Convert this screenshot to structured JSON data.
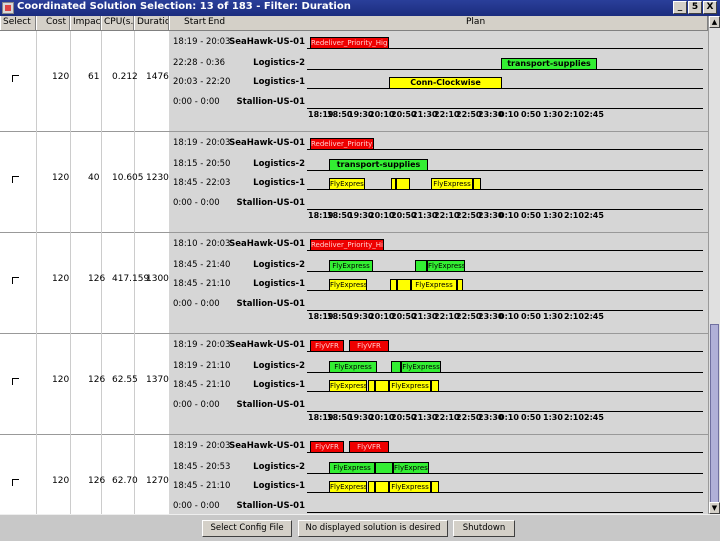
{
  "window": {
    "title": "Coordinated Solution Selection: 13 of 183 - Filter: Duration",
    "min": "_",
    "restore": "5",
    "close": "X"
  },
  "headers": {
    "select": "Select",
    "cost": "Cost",
    "impact": "Impact",
    "cpu": "CPU(s...",
    "duration": "Duration",
    "start": "Start",
    "end": "End",
    "plan": "Plan"
  },
  "rows": [
    {
      "cost": "120",
      "impact": "61",
      "cpu": "0.212",
      "duration": "1476",
      "lanes": [
        {
          "time": "18:19 - 20:03",
          "name": "SeaHawk-US-01",
          "bars": [
            {
              "label": "Redeliver_Priority_High",
              "color": "red",
              "x": 141,
              "w": 79
            }
          ]
        },
        {
          "time": "22:28 - 0:36",
          "name": "Logistics-2",
          "bars": [
            {
              "label": "transport-supplies",
              "color": "green",
              "x": 332,
              "w": 96
            }
          ]
        },
        {
          "time": "20:03 - 22:20",
          "name": "Logistics-1",
          "bars": [
            {
              "label": "Conn-Clockwise",
              "color": "yellow",
              "x": 220,
              "w": 113
            }
          ]
        },
        {
          "time": "0:00 - 0:00",
          "name": "Stallion-US-01",
          "bars": []
        }
      ]
    },
    {
      "cost": "120",
      "impact": "40",
      "cpu": "10.605",
      "duration": "1230",
      "lanes": [
        {
          "time": "18:19 - 20:03",
          "name": "SeaHawk-US-01",
          "bars": [
            {
              "label": "Redeliver_Priority_High",
              "color": "red",
              "x": 141,
              "w": 64
            }
          ]
        },
        {
          "time": "18:15 - 20:50",
          "name": "Logistics-2",
          "bars": [
            {
              "label": "transport-supplies",
              "color": "green",
              "x": 160,
              "w": 99
            }
          ]
        },
        {
          "time": "18:45 - 22:03",
          "name": "Logistics-1",
          "bars": [
            {
              "label": "FlyExpress",
              "color": "yellow",
              "x": 160,
              "w": 36
            },
            {
              "label": "",
              "color": "yellow",
              "x": 222,
              "w": 5
            },
            {
              "label": "",
              "color": "yellow",
              "x": 227,
              "w": 14
            },
            {
              "label": "FlyExpress",
              "color": "yellow",
              "x": 262,
              "w": 42
            },
            {
              "label": "",
              "color": "yellow",
              "x": 304,
              "w": 8
            }
          ]
        },
        {
          "time": "0:00 - 0:00",
          "name": "Stallion-US-01",
          "bars": []
        }
      ]
    },
    {
      "cost": "120",
      "impact": "126",
      "cpu": "417.159",
      "duration": "1300",
      "lanes": [
        {
          "time": "18:10 - 20:03",
          "name": "SeaHawk-US-01",
          "bars": [
            {
              "label": "Redeliver_Priority_High",
              "color": "red",
              "x": 141,
              "w": 74
            }
          ]
        },
        {
          "time": "18:45 - 21:40",
          "name": "Logistics-2",
          "bars": [
            {
              "label": "FlyExpress",
              "color": "green",
              "x": 160,
              "w": 44
            },
            {
              "label": "",
              "color": "green",
              "x": 246,
              "w": 12
            },
            {
              "label": "FlyExpress",
              "color": "green",
              "x": 258,
              "w": 38
            }
          ]
        },
        {
          "time": "18:45 - 21:10",
          "name": "Logistics-1",
          "bars": [
            {
              "label": "FlyExpress",
              "color": "yellow",
              "x": 160,
              "w": 38
            },
            {
              "label": "",
              "color": "yellow",
              "x": 221,
              "w": 7
            },
            {
              "label": "",
              "color": "yellow",
              "x": 228,
              "w": 14
            },
            {
              "label": "FlyExpress",
              "color": "yellow",
              "x": 242,
              "w": 46
            },
            {
              "label": "",
              "color": "yellow",
              "x": 288,
              "w": 6
            }
          ]
        },
        {
          "time": "0:00 - 0:00",
          "name": "Stallion-US-01",
          "bars": []
        }
      ]
    },
    {
      "cost": "120",
      "impact": "126",
      "cpu": "62.55",
      "duration": "1370",
      "lanes": [
        {
          "time": "18:19 - 20:03",
          "name": "SeaHawk-US-01",
          "bars": [
            {
              "label": "FlyVFR",
              "color": "red",
              "x": 141,
              "w": 34
            },
            {
              "label": "FlyVFR",
              "color": "red",
              "x": 180,
              "w": 40
            }
          ]
        },
        {
          "time": "18:19 - 21:10",
          "name": "Logistics-2",
          "bars": [
            {
              "label": "FlyExpress",
              "color": "green",
              "x": 160,
              "w": 48
            },
            {
              "label": "",
              "color": "green",
              "x": 222,
              "w": 10
            },
            {
              "label": "FlyExpress",
              "color": "green",
              "x": 232,
              "w": 40
            }
          ]
        },
        {
          "time": "18:45 - 21:10",
          "name": "Logistics-1",
          "bars": [
            {
              "label": "FlyExpress",
              "color": "yellow",
              "x": 160,
              "w": 38
            },
            {
              "label": "",
              "color": "yellow",
              "x": 199,
              "w": 7
            },
            {
              "label": "",
              "color": "yellow",
              "x": 206,
              "w": 14
            },
            {
              "label": "FlyExpress",
              "color": "yellow",
              "x": 220,
              "w": 42
            },
            {
              "label": "",
              "color": "yellow",
              "x": 262,
              "w": 8
            }
          ]
        },
        {
          "time": "0:00 - 0:00",
          "name": "Stallion-US-01",
          "bars": []
        }
      ]
    },
    {
      "cost": "120",
      "impact": "126",
      "cpu": "62.70",
      "duration": "1270",
      "lanes": [
        {
          "time": "18:19 - 20:03",
          "name": "SeaHawk-US-01",
          "bars": [
            {
              "label": "FlyVFR",
              "color": "red",
              "x": 141,
              "w": 34
            },
            {
              "label": "FlyVFR",
              "color": "red",
              "x": 180,
              "w": 40
            }
          ]
        },
        {
          "time": "18:45 - 20:53",
          "name": "Logistics-2",
          "bars": [
            {
              "label": "FlyExpress",
              "color": "green",
              "x": 160,
              "w": 46
            },
            {
              "label": "",
              "color": "green",
              "x": 206,
              "w": 18
            },
            {
              "label": "FlyExpress",
              "color": "green",
              "x": 224,
              "w": 36
            }
          ]
        },
        {
          "time": "18:45 - 21:10",
          "name": "Logistics-1",
          "bars": [
            {
              "label": "FlyExpress",
              "color": "yellow",
              "x": 160,
              "w": 38
            },
            {
              "label": "",
              "color": "yellow",
              "x": 199,
              "w": 7
            },
            {
              "label": "",
              "color": "yellow",
              "x": 206,
              "w": 14
            },
            {
              "label": "FlyExpress",
              "color": "yellow",
              "x": 220,
              "w": 42
            },
            {
              "label": "",
              "color": "yellow",
              "x": 262,
              "w": 8
            }
          ]
        },
        {
          "time": "0:00 - 0:00",
          "name": "Stallion-US-01",
          "bars": []
        }
      ]
    }
  ],
  "axis_ticks": [
    "18:19",
    "18:50",
    "19:30",
    "20:10",
    "20:50",
    "21:30",
    "22:10",
    "22:50",
    "23:30",
    "0:10",
    "0:50",
    "1:30",
    "2:10",
    "2:45"
  ],
  "buttons": {
    "config": "Select Config File",
    "none": "No displayed solution is desired",
    "shutdown": "Shutdown"
  }
}
